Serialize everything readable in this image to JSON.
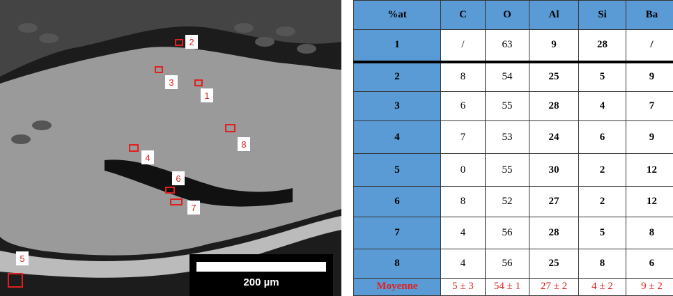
{
  "image": {
    "markers": [
      "1",
      "2",
      "3",
      "4",
      "5",
      "6",
      "7",
      "8"
    ],
    "scale_bar": "200 µm"
  },
  "table": {
    "header": [
      "%at",
      "C",
      "O",
      "Al",
      "Si",
      "Ba"
    ],
    "rows": [
      [
        "1",
        "/",
        "63",
        "9",
        "28",
        "/"
      ],
      [
        "2",
        "8",
        "54",
        "25",
        "5",
        "9"
      ],
      [
        "3",
        "6",
        "55",
        "28",
        "4",
        "7"
      ],
      [
        "4",
        "7",
        "53",
        "24",
        "6",
        "9"
      ],
      [
        "5",
        "0",
        "55",
        "30",
        "2",
        "12"
      ],
      [
        "6",
        "8",
        "52",
        "27",
        "2",
        "12"
      ],
      [
        "7",
        "4",
        "56",
        "28",
        "5",
        "8"
      ],
      [
        "8",
        "4",
        "56",
        "25",
        "8",
        "6"
      ],
      [
        "Moyenne",
        "5 ± 3",
        "54 ± 1",
        "27 ± 2",
        "4 ± 2",
        "9 ± 2"
      ]
    ]
  }
}
